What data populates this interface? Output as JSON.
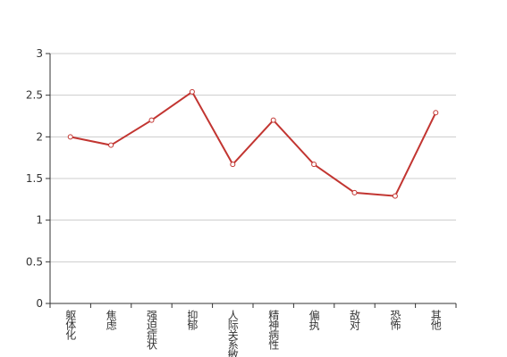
{
  "chart_data": {
    "type": "line",
    "categories": [
      "躯体化",
      "焦虑",
      "强迫症状",
      "抑郁",
      "人际关系敏感",
      "精神病性",
      "偏执",
      "敌对",
      "恐怖",
      "其他"
    ],
    "series": [
      {
        "color": "#c23531",
        "values": [
          2.0,
          1.9,
          2.2,
          2.54,
          1.67,
          2.2,
          1.67,
          1.33,
          1.29,
          2.29
        ]
      }
    ],
    "ylim": [
      0,
      3
    ],
    "yticks": [
      0,
      0.5,
      1,
      1.5,
      2,
      2.5,
      3
    ],
    "grid": true
  }
}
